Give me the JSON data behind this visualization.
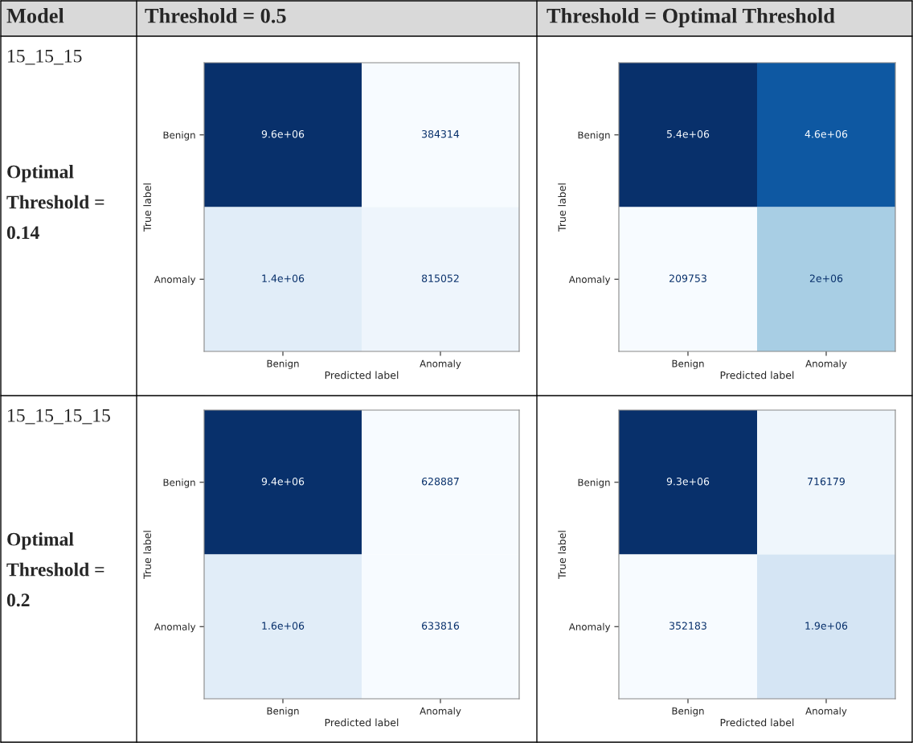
{
  "chart_data": [
    {
      "type": "other",
      "annotations": [
        "Model",
        "Threshold = 0.5",
        "Threshold = Optimal Threshold",
        "15_15_15",
        "Optimal Threshold = 0.14",
        "15_15_15_15",
        "Optimal Threshold = 0.2"
      ]
    },
    {
      "type": "heatmap",
      "xlabel": "Predicted label",
      "ylabel": "True label",
      "categories": [
        "Benign",
        "Anomaly"
      ],
      "y_categories": [
        "Benign",
        "Anomaly"
      ],
      "cells": [
        [
          9600000,
          384314
        ],
        [
          1400000,
          815052
        ]
      ],
      "cell_labels": [
        [
          "9.6e+06",
          "384314"
        ],
        [
          "1.4e+06",
          "815052"
        ]
      ]
    },
    {
      "type": "heatmap",
      "xlabel": "Predicted label",
      "ylabel": "True label",
      "categories": [
        "Benign",
        "Anomaly"
      ],
      "y_categories": [
        "Benign",
        "Anomaly"
      ],
      "cells": [
        [
          5400000,
          4600000
        ],
        [
          209753,
          2000000
        ]
      ],
      "cell_labels": [
        [
          "5.4e+06",
          "4.6e+06"
        ],
        [
          "209753",
          "2e+06"
        ]
      ]
    },
    {
      "type": "heatmap",
      "xlabel": "Predicted label",
      "ylabel": "True label",
      "categories": [
        "Benign",
        "Anomaly"
      ],
      "y_categories": [
        "Benign",
        "Anomaly"
      ],
      "cells": [
        [
          9400000,
          628887
        ],
        [
          1600000,
          633816
        ]
      ],
      "cell_labels": [
        [
          "9.4e+06",
          "628887"
        ],
        [
          "1.6e+06",
          "633816"
        ]
      ]
    },
    {
      "type": "heatmap",
      "xlabel": "Predicted label",
      "ylabel": "True label",
      "categories": [
        "Benign",
        "Anomaly"
      ],
      "y_categories": [
        "Benign",
        "Anomaly"
      ],
      "cells": [
        [
          9300000,
          716179
        ],
        [
          352183,
          1900000
        ]
      ],
      "cell_labels": [
        [
          "9.3e+06",
          "716179"
        ],
        [
          "352183",
          "1.9e+06"
        ]
      ]
    }
  ]
}
